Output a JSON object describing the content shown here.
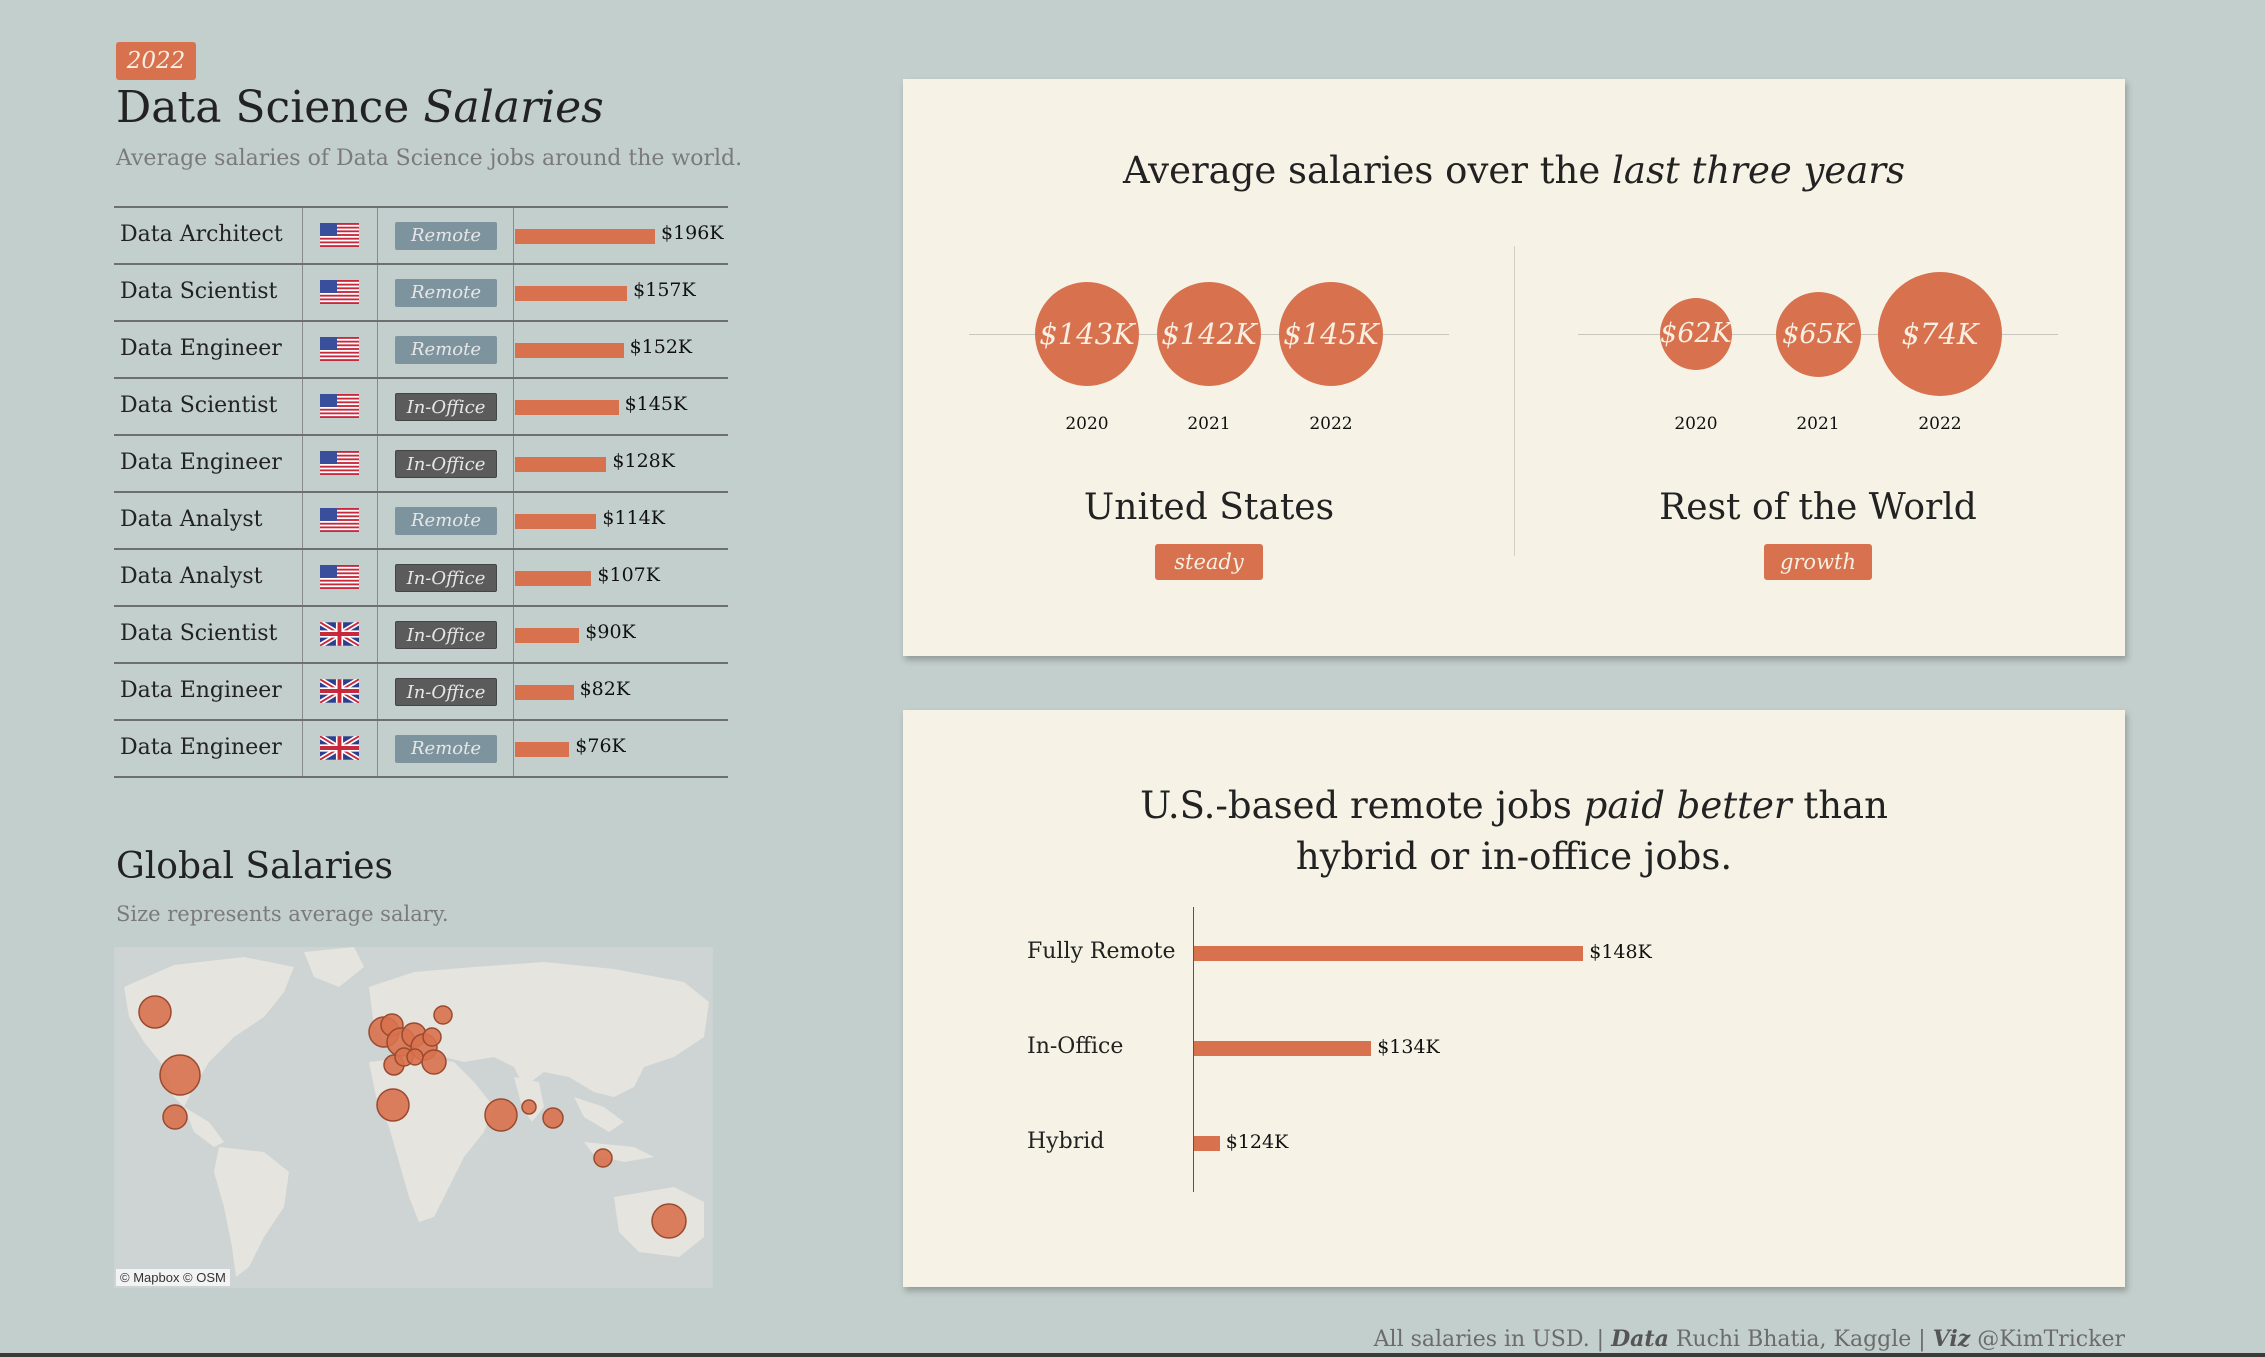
{
  "header": {
    "year_badge": "2022",
    "title_plain": "Data Science ",
    "title_italic": "Salaries",
    "subtitle": "Average salaries of Data Science jobs around the world."
  },
  "colors": {
    "accent": "#d8714e",
    "remote_tag": "#7d939e",
    "office_tag": "#5b5b5b",
    "background": "#c3cfcc",
    "panel": "#f6f3e6"
  },
  "chart_data": [
    {
      "type": "bar",
      "title": "",
      "columns": [
        "job",
        "country-flag",
        "work-setting",
        "salary"
      ],
      "rows": [
        {
          "job": "Data Architect",
          "flag": "us-flag-icon",
          "setting": "Remote",
          "value": 196,
          "label": "$196K"
        },
        {
          "job": "Data Scientist",
          "flag": "us-flag-icon",
          "setting": "Remote",
          "value": 157,
          "label": "$157K"
        },
        {
          "job": "Data Engineer",
          "flag": "us-flag-icon",
          "setting": "Remote",
          "value": 152,
          "label": "$152K"
        },
        {
          "job": "Data Scientist",
          "flag": "us-flag-icon",
          "setting": "In-Office",
          "value": 145,
          "label": "$145K"
        },
        {
          "job": "Data Engineer",
          "flag": "us-flag-icon",
          "setting": "In-Office",
          "value": 128,
          "label": "$128K"
        },
        {
          "job": "Data Analyst",
          "flag": "us-flag-icon",
          "setting": "Remote",
          "value": 114,
          "label": "$114K"
        },
        {
          "job": "Data Analyst",
          "flag": "us-flag-icon",
          "setting": "In-Office",
          "value": 107,
          "label": "$107K"
        },
        {
          "job": "Data Scientist",
          "flag": "uk-flag-icon",
          "setting": "In-Office",
          "value": 90,
          "label": "$90K"
        },
        {
          "job": "Data Engineer",
          "flag": "uk-flag-icon",
          "setting": "In-Office",
          "value": 82,
          "label": "$82K"
        },
        {
          "job": "Data Engineer",
          "flag": "uk-flag-icon",
          "setting": "Remote",
          "value": 76,
          "label": "$76K"
        }
      ]
    },
    {
      "type": "scatter",
      "title": "Average salaries over the last three years",
      "title_plain": "Average salaries over the ",
      "title_italic": "last three years",
      "groups": [
        {
          "name": "United States",
          "trend": "steady",
          "x": [
            "2020",
            "2021",
            "2022"
          ],
          "values": [
            143,
            142,
            145
          ],
          "labels": [
            "$143K",
            "$142K",
            "$145K"
          ]
        },
        {
          "name": "Rest of the World",
          "trend": "growth",
          "x": [
            "2020",
            "2021",
            "2022"
          ],
          "values": [
            62,
            65,
            74
          ],
          "labels": [
            "$62K",
            "$65K",
            "$74K"
          ]
        }
      ]
    },
    {
      "type": "bar",
      "title": "U.S.-based remote jobs paid better than hybrid or in-office jobs.",
      "title_line1_plain": "U.S.-based remote jobs ",
      "title_line1_italic": "paid better",
      "title_line1_rest": " than",
      "title_line2": "hybrid or in-office jobs.",
      "categories": [
        "Fully Remote",
        "In-Office",
        "Hybrid"
      ],
      "values": [
        148,
        134,
        124
      ],
      "labels": [
        "$148K",
        "$134K",
        "$124K"
      ]
    }
  ],
  "map": {
    "title": "Global Salaries",
    "subtitle": "Size represents average salary.",
    "credit": "© Mapbox  © OSM"
  },
  "footer": {
    "note": "All salaries in USD.",
    "sep1": " | ",
    "data_label": "Data",
    "data_value": " Ruchi Bhatia, Kaggle",
    "sep2": " | ",
    "viz_label": "Viz",
    "viz_value": " @KimTricker"
  }
}
